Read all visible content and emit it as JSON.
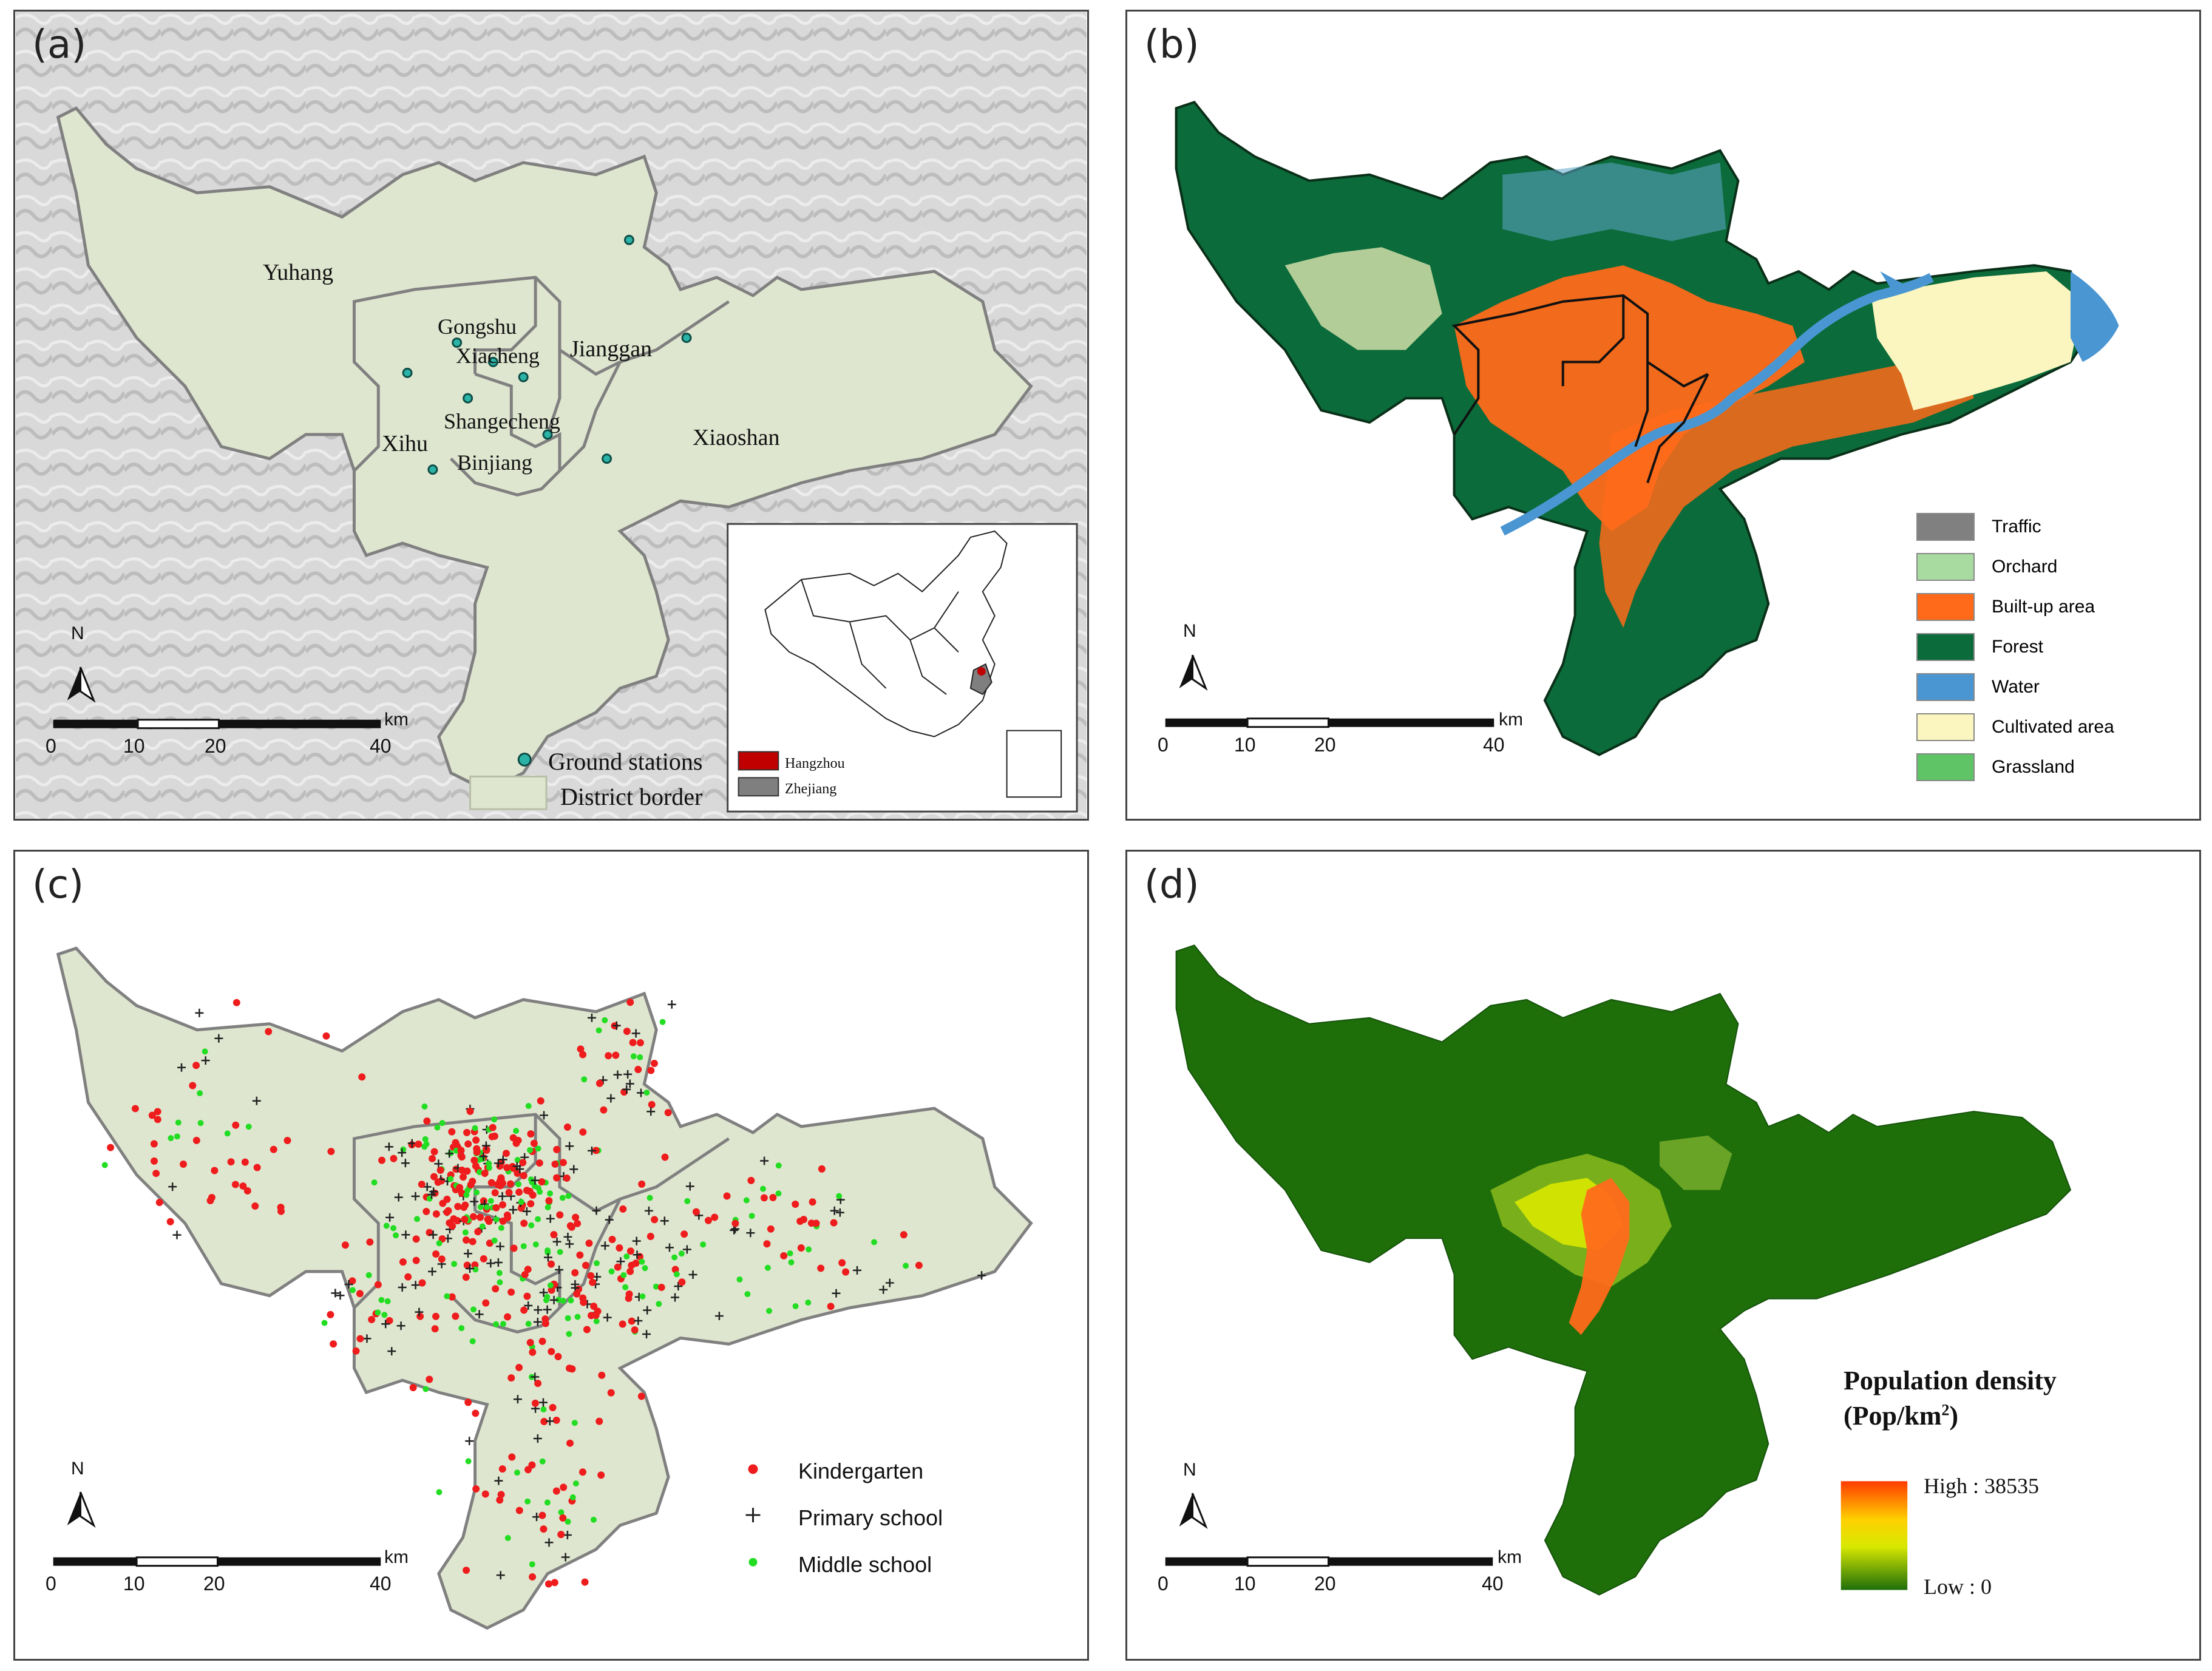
{
  "panels": {
    "a": {
      "label": "(a)",
      "districts": [
        "Yuhang",
        "Gongshu",
        "Xiacheng",
        "Jianggan",
        "Shangecheng",
        "Xihu",
        "Binjiang",
        "Xiaoshan"
      ],
      "legend": {
        "stations": "Ground stations",
        "border": "District border"
      },
      "inset": {
        "hangzhou": "Hangzhou",
        "zhejiang": "Zhejiang"
      },
      "scale": {
        "ticks": [
          "0",
          "10",
          "20",
          "40"
        ],
        "unit": "km"
      },
      "north": "N"
    },
    "b": {
      "label": "(b)",
      "legend": [
        {
          "name": "Traffic",
          "color": "#808080"
        },
        {
          "name": "Orchard",
          "color": "#a8dba0"
        },
        {
          "name": "Built-up area",
          "color": "#ff6a1a"
        },
        {
          "name": "Forest",
          "color": "#0b6b3a"
        },
        {
          "name": "Water",
          "color": "#4a96d2"
        },
        {
          "name": "Cultivated area",
          "color": "#fbf6c0"
        },
        {
          "name": "Grassland",
          "color": "#5ec466"
        }
      ],
      "scale": {
        "ticks": [
          "0",
          "10",
          "20",
          "40"
        ],
        "unit": "km"
      },
      "north": "N"
    },
    "c": {
      "label": "(c)",
      "legend": [
        {
          "name": "Kindergarten",
          "symbol": "•",
          "color": "#ee1c1c"
        },
        {
          "name": "Primary school",
          "symbol": "+",
          "color": "#222222"
        },
        {
          "name": "Middle school",
          "symbol": "•",
          "color": "#22dd22"
        }
      ],
      "scale": {
        "ticks": [
          "0",
          "10",
          "20",
          "40"
        ],
        "unit": "km"
      },
      "north": "N"
    },
    "d": {
      "label": "(d)",
      "legend_title": "Population density",
      "legend_unit": "(Pop/km",
      "legend_unit_sup": "2",
      "legend_unit_close": ")",
      "high": "High : 38535",
      "low": "Low : 0",
      "scale": {
        "ticks": [
          "0",
          "10",
          "20",
          "40"
        ],
        "unit": "km"
      },
      "north": "N"
    }
  },
  "colors": {
    "district_fill": "#dfe6cf",
    "district_border": "#808080",
    "station": "#2ab3a6",
    "hangzhou": "#c00000",
    "zhejiang": "#7f7f7f",
    "forest": "#0b6b3a",
    "built": "#ff6a1a",
    "water": "#4a96d2",
    "density_low": "#1e6e0a"
  }
}
